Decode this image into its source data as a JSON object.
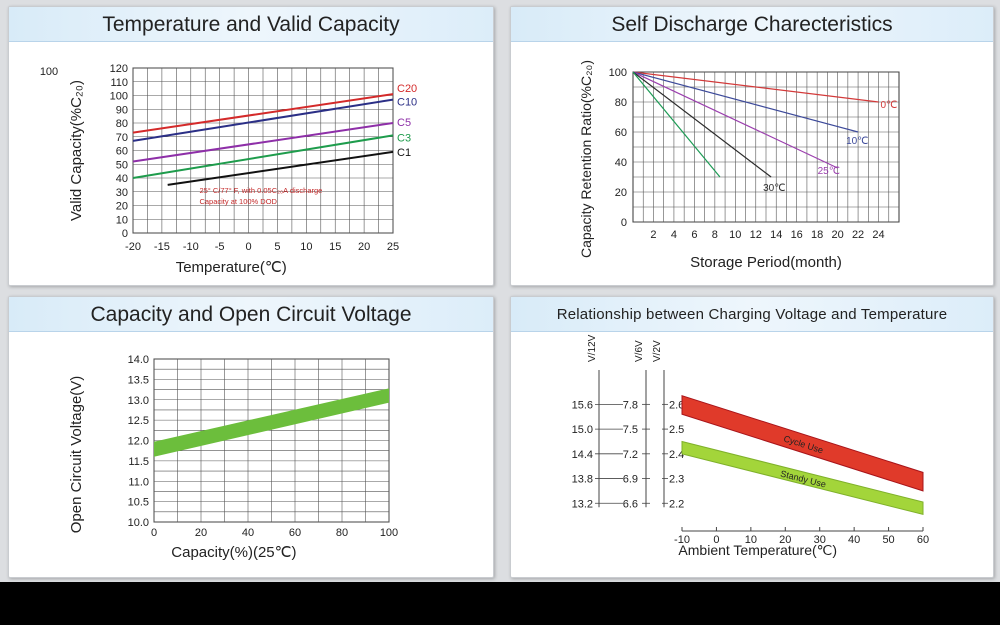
{
  "panels": {
    "temperature": {
      "title": "Temperature and Valid Capacity"
    },
    "discharge": {
      "title": "Self Discharge Charecteristics"
    },
    "ocv": {
      "title": "Capacity and Open Circuit Voltage"
    },
    "charging": {
      "title": "Relationship between Charging Voltage and Temperature"
    }
  },
  "chart_data": [
    {
      "id": "temperature",
      "type": "line",
      "title": "Temperature and Valid Capacity",
      "xlabel": "Temperature(℃)",
      "ylabel": "Valid Capacity(%C₂₀)",
      "corner_label": "100",
      "xlim": [
        -20,
        25
      ],
      "ylim": [
        0,
        120
      ],
      "xticks": [
        -20,
        -15,
        -10,
        -5,
        0,
        5,
        10,
        15,
        20,
        25
      ],
      "yticks": [
        0,
        10,
        20,
        30,
        40,
        50,
        60,
        70,
        80,
        90,
        100,
        110,
        120
      ],
      "grid": true,
      "annotation": [
        "25° C/77° F, with 0.05C₂₀A discharge",
        "Capacity at 100% DOD"
      ],
      "series": [
        {
          "name": "C20",
          "color": "#d42a2a",
          "x": [
            -20,
            25
          ],
          "y": [
            73,
            101
          ]
        },
        {
          "name": "C10",
          "color": "#2b2f86",
          "x": [
            -20,
            25
          ],
          "y": [
            67,
            97
          ]
        },
        {
          "name": "C5",
          "color": "#8e2fa8",
          "x": [
            -20,
            25
          ],
          "y": [
            52,
            80
          ]
        },
        {
          "name": "C3",
          "color": "#1e9c4c",
          "x": [
            -20,
            25
          ],
          "y": [
            40,
            71
          ]
        },
        {
          "name": "C1",
          "color": "#111111",
          "x": [
            -14,
            25
          ],
          "y": [
            35,
            59
          ]
        }
      ]
    },
    {
      "id": "discharge",
      "type": "line",
      "title": "Self Discharge Charecteristics",
      "xlabel": "Storage Period(month)",
      "ylabel": "Capacity Retention Ratio(%C₂₀)",
      "xlim": [
        0,
        26
      ],
      "ylim": [
        0,
        100
      ],
      "xticks": [
        2,
        4,
        6,
        8,
        10,
        12,
        14,
        16,
        18,
        20,
        22,
        24
      ],
      "yticks": [
        0,
        20,
        40,
        60,
        80,
        100
      ],
      "grid": true,
      "series": [
        {
          "name": "0℃",
          "color": "#d33a3a",
          "x": [
            0,
            24
          ],
          "y": [
            100,
            80
          ]
        },
        {
          "name": "10℃",
          "color": "#3d4a9a",
          "x": [
            0,
            22
          ],
          "y": [
            100,
            60
          ]
        },
        {
          "name": "25℃",
          "color": "#9b3fae",
          "x": [
            0,
            20
          ],
          "y": [
            100,
            36
          ]
        },
        {
          "name": "30℃",
          "color": "#2c2c2c",
          "x": [
            0,
            13.5
          ],
          "y": [
            100,
            30
          ]
        },
        {
          "name": "",
          "color": "#1d9b55",
          "x": [
            0,
            8.5
          ],
          "y": [
            100,
            30
          ]
        }
      ]
    },
    {
      "id": "ocv",
      "type": "area",
      "title": "Capacity and Open Circuit Voltage",
      "xlabel": "Capacity(%)(25℃)",
      "ylabel": "Open Circuit Voltage(V)",
      "xlim": [
        0,
        100
      ],
      "ylim": [
        10.0,
        14.0
      ],
      "xticks": [
        0,
        20,
        40,
        60,
        80,
        100
      ],
      "yticks": [
        "10.0",
        "10.5",
        "11.0",
        "11.5",
        "12.0",
        "12.5",
        "13.0",
        "13.5",
        "14.0"
      ],
      "grid": true,
      "band": {
        "color": "#6cbe3c",
        "x": [
          0,
          100
        ],
        "low": [
          11.6,
          12.93
        ],
        "high": [
          11.97,
          13.28
        ]
      }
    },
    {
      "id": "charging",
      "type": "area",
      "title": "Relationship between Charging Voltage and Temperature",
      "xlabel": "Ambient Temperature(℃)",
      "xlim": [
        -10,
        60
      ],
      "xticks": [
        -10,
        0,
        10,
        20,
        30,
        40,
        50,
        60
      ],
      "axes": [
        {
          "label": "V/12V",
          "ticks": [
            "15.6",
            "15.0",
            "14.4",
            "13.8",
            "13.2"
          ]
        },
        {
          "label": "V/6V",
          "ticks": [
            "7.8",
            "7.5",
            "7.2",
            "6.9",
            "6.6"
          ]
        },
        {
          "label": "V/2V",
          "ticks": [
            "2.6",
            "2.5",
            "2.4",
            "2.3",
            "2.2"
          ]
        }
      ],
      "ylim": [
        2.1,
        2.65
      ],
      "series": [
        {
          "name": "Cycle Use",
          "color": "#e03a2a",
          "edge": "#a8141a",
          "x": [
            -10,
            60
          ],
          "low": [
            2.56,
            2.25
          ],
          "high": [
            2.635,
            2.325
          ]
        },
        {
          "name": "Standy Use",
          "color": "#a3d53a",
          "edge": "#7fb12a",
          "x": [
            -10,
            60
          ],
          "low": [
            2.4,
            2.155
          ],
          "high": [
            2.45,
            2.205
          ]
        }
      ]
    }
  ]
}
